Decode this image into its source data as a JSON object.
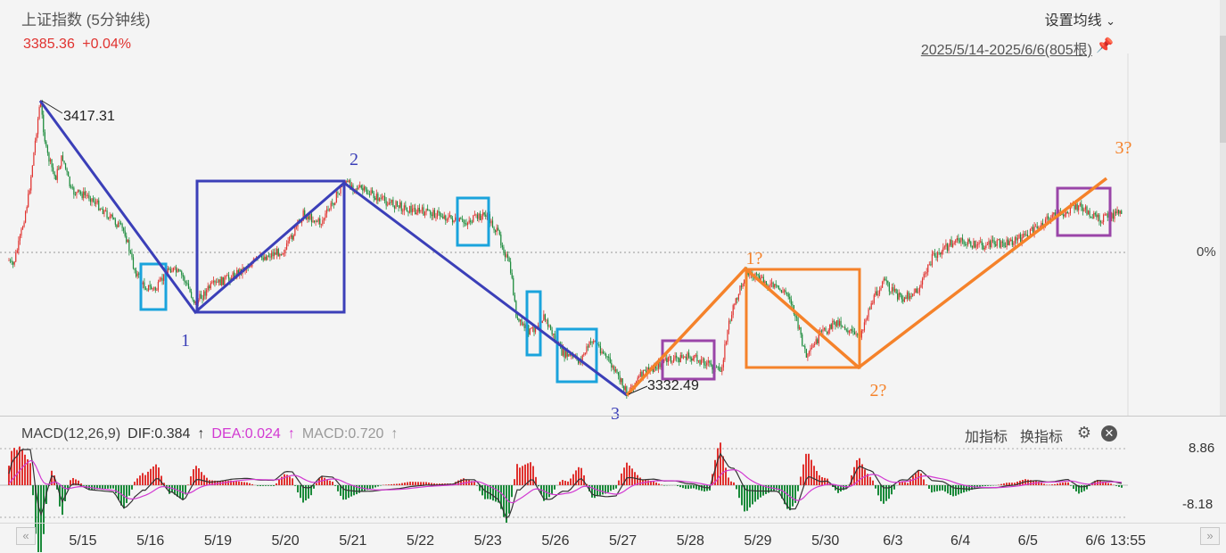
{
  "header": {
    "title": "上证指数 (5分钟线)",
    "price": "3385.36",
    "change": "+0.04%",
    "set_ma_label": "设置均线",
    "set_ma_chevron": "⌄",
    "range_label": "2025/5/14-2025/6/6(805根)",
    "pin_icon": "pin-icon"
  },
  "colors": {
    "up": "#e0322f",
    "down": "#1a8a3a",
    "blue_wave": "#3b3fb8",
    "orange_wave": "#f5822a",
    "cyan_box": "#1aa3dc",
    "purple_box": "#9a45a8",
    "dif": "#333333",
    "dea": "#d23ad2"
  },
  "chart_data": {
    "type": "line",
    "title": "上证指数 (5分钟线)",
    "x_categories": [
      "5/15",
      "5/16",
      "5/19",
      "5/20",
      "5/21",
      "5/22",
      "5/23",
      "5/26",
      "5/27",
      "5/28",
      "5/29",
      "5/30",
      "6/3",
      "6/4",
      "6/5",
      "6/6"
    ],
    "last_time_label": "13:55",
    "reference_label": "0%",
    "high_annotation": "3417.31",
    "low_annotation": "3332.49",
    "ylim": [
      3328,
      3422
    ],
    "wave_points": [
      {
        "label": "1",
        "x": 2.85,
        "y": 3354.5,
        "color": "blue_wave"
      },
      {
        "label": "2",
        "x": 4.95,
        "y": 3381.0,
        "color": "blue_wave"
      },
      {
        "label": "3",
        "x": 8.85,
        "y": 3332.49,
        "color": "blue_wave"
      },
      {
        "label": "1?",
        "x": 11.0,
        "y": 3362.3,
        "color": "orange_wave"
      },
      {
        "label": "2?",
        "x": 12.6,
        "y": 3341.0,
        "color": "orange_wave"
      },
      {
        "label": "3?",
        "x": 16.1,
        "y": 3389.8,
        "color": "orange_wave"
      }
    ],
    "macd": {
      "title": "MACD(12,26,9)",
      "dif_label": "DIF:0.384",
      "dea_label": "DEA:0.024",
      "macd_label": "MACD:0.720",
      "arrow": "↑",
      "ymax_label": "8.86",
      "ymin_label": "-8.18",
      "ylim": [
        -8.18,
        8.86
      ]
    }
  },
  "indicator": {
    "add_label": "加指标",
    "change_label": "换指标",
    "gear_icon": "gear-icon",
    "close_icon": "close-icon"
  }
}
